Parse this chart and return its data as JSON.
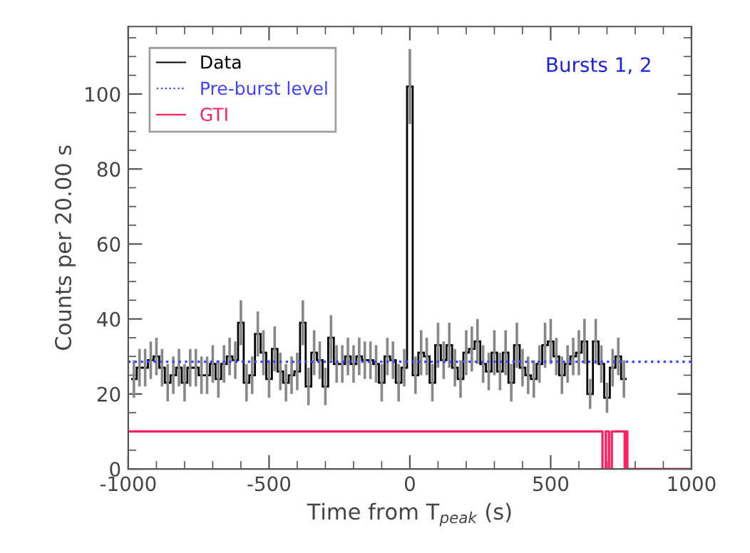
{
  "chart_data": {
    "type": "step",
    "xlabel": "Time from T$_{peak}$ (s)",
    "ylabel": "Counts per 20.00 s",
    "xlim": [
      -1000,
      1000
    ],
    "xticks": [
      -1000,
      -500,
      0,
      500,
      1000
    ],
    "ylim": [
      0,
      118
    ],
    "yticks": [
      0,
      20,
      40,
      60,
      80,
      100
    ],
    "legend": "top left",
    "grid": false,
    "series": [
      {
        "name": "Data",
        "color": "#000000",
        "x": [
          -980,
          -960,
          -940,
          -920,
          -900,
          -880,
          -860,
          -840,
          -820,
          -800,
          -780,
          -760,
          -740,
          -720,
          -700,
          -680,
          -660,
          -640,
          -620,
          -600,
          -580,
          -560,
          -540,
          -520,
          -500,
          -480,
          -460,
          -440,
          -420,
          -400,
          -380,
          -360,
          -340,
          -320,
          -300,
          -280,
          -260,
          -240,
          -220,
          -200,
          -180,
          -160,
          -140,
          -120,
          -100,
          -80,
          -60,
          -40,
          -20,
          0,
          20,
          40,
          60,
          80,
          100,
          120,
          140,
          160,
          180,
          200,
          220,
          240,
          260,
          280,
          300,
          320,
          340,
          360,
          380,
          400,
          420,
          440,
          460,
          480,
          500,
          520,
          540,
          560,
          580,
          600,
          620,
          640,
          660,
          680,
          700,
          720,
          740,
          760
        ],
        "values": [
          24,
          27,
          27,
          29,
          30,
          27,
          23,
          25,
          27,
          23,
          27,
          27,
          25,
          25,
          28,
          24,
          28,
          30,
          29,
          39,
          23,
          25,
          36,
          31,
          24,
          32,
          26,
          23,
          25,
          26,
          39,
          22,
          31,
          29,
          22,
          35,
          28,
          28,
          30,
          28,
          30,
          29,
          29,
          28,
          23,
          30,
          29,
          23,
          27,
          102,
          25,
          31,
          30,
          23,
          33,
          29,
          33,
          27,
          24,
          31,
          32,
          34,
          28,
          26,
          31,
          26,
          31,
          23,
          33,
          27,
          25,
          24,
          28,
          33,
          34,
          30,
          25,
          28,
          30,
          31,
          34,
          20,
          34,
          28,
          19,
          27,
          30,
          24
        ],
        "errors": [
          5,
          5,
          5,
          5,
          5,
          5,
          5,
          5,
          5,
          5,
          5,
          5,
          5,
          5,
          5,
          5,
          5,
          5,
          5,
          6,
          5,
          5,
          6,
          6,
          5,
          6,
          5,
          5,
          5,
          5,
          6,
          5,
          6,
          5,
          5,
          6,
          5,
          5,
          5,
          5,
          5,
          5,
          5,
          5,
          5,
          5,
          5,
          5,
          5,
          10,
          5,
          6,
          5,
          5,
          6,
          5,
          6,
          5,
          5,
          6,
          6,
          6,
          5,
          5,
          6,
          5,
          6,
          5,
          6,
          5,
          5,
          5,
          5,
          6,
          6,
          5,
          5,
          5,
          5,
          6,
          6,
          4,
          6,
          5,
          4,
          5,
          5,
          5
        ]
      },
      {
        "name": "GTI",
        "type": "line",
        "color": "#ff2060",
        "x": [
          -1000,
          684,
          684,
          696,
          696,
          707,
          707,
          717,
          717,
          763,
          763,
          768,
          768,
          772,
          772,
          1000
        ],
        "values": [
          10,
          10,
          0,
          0,
          10,
          10,
          0,
          0,
          10,
          10,
          0,
          0,
          10,
          10,
          0,
          0
        ]
      }
    ],
    "ref_lines": [
      {
        "axis": "y",
        "value": 28.6,
        "label": "Pre-burst level",
        "color": "#4040ff",
        "line_style": "dotted"
      }
    ],
    "annotations": [
      "Bursts 1, 2"
    ]
  }
}
